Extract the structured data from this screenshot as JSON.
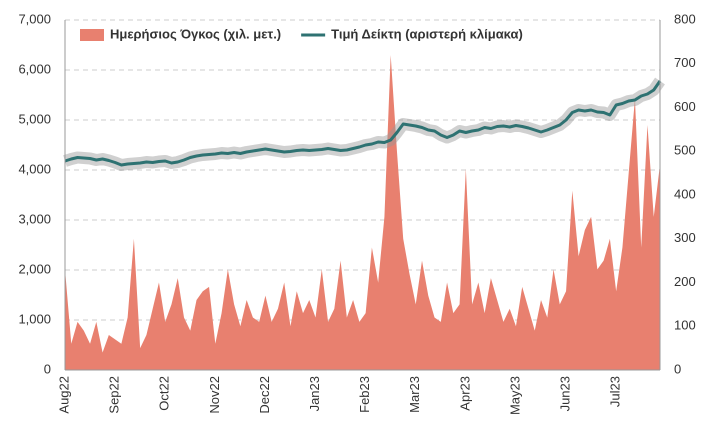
{
  "chart_data": {
    "type": "combo",
    "categories": [
      "Aug22",
      null,
      null,
      null,
      null,
      null,
      null,
      null,
      "Sep22",
      null,
      null,
      null,
      null,
      null,
      null,
      null,
      "Oct22",
      null,
      null,
      null,
      null,
      null,
      null,
      null,
      "Nov22",
      null,
      null,
      null,
      null,
      null,
      null,
      null,
      "Dec22",
      null,
      null,
      null,
      null,
      null,
      null,
      null,
      "Jan23",
      null,
      null,
      null,
      null,
      null,
      null,
      null,
      "Feb23",
      null,
      null,
      null,
      null,
      null,
      null,
      null,
      "Mar23",
      null,
      null,
      null,
      null,
      null,
      null,
      null,
      "Apr23",
      null,
      null,
      null,
      null,
      null,
      null,
      null,
      "May23",
      null,
      null,
      null,
      null,
      null,
      null,
      null,
      "Jun23",
      null,
      null,
      null,
      null,
      null,
      null,
      null,
      "Jul23",
      null,
      null,
      null,
      null,
      null,
      null,
      null
    ],
    "series": [
      {
        "name": "Ημερήσιος Όγκος (χιλ. μετ.)",
        "type": "area",
        "axis": "y2",
        "color": "#e8806f",
        "values": [
          230,
          60,
          110,
          90,
          60,
          110,
          40,
          80,
          70,
          60,
          120,
          300,
          50,
          80,
          140,
          200,
          110,
          150,
          210,
          120,
          90,
          160,
          180,
          190,
          60,
          130,
          230,
          150,
          100,
          160,
          120,
          110,
          170,
          110,
          140,
          200,
          100,
          180,
          130,
          160,
          120,
          230,
          110,
          140,
          250,
          120,
          160,
          110,
          130,
          280,
          200,
          350,
          720,
          500,
          300,
          220,
          150,
          250,
          170,
          120,
          110,
          200,
          130,
          150,
          460,
          150,
          200,
          130,
          210,
          160,
          110,
          140,
          100,
          190,
          140,
          90,
          160,
          120,
          230,
          150,
          180,
          410,
          260,
          320,
          350,
          230,
          250,
          300,
          180,
          280,
          450,
          620,
          280,
          560,
          350,
          470
        ]
      },
      {
        "name": "Τιμή Δείκτη (αριστερή κλίμακα)",
        "type": "line",
        "axis": "y",
        "color": "#2e7272",
        "values": [
          4180,
          4220,
          4250,
          4240,
          4230,
          4200,
          4220,
          4190,
          4150,
          4100,
          4120,
          4130,
          4140,
          4160,
          4150,
          4170,
          4180,
          4140,
          4160,
          4200,
          4250,
          4280,
          4300,
          4310,
          4320,
          4340,
          4330,
          4350,
          4330,
          4360,
          4380,
          4400,
          4420,
          4400,
          4380,
          4360,
          4370,
          4390,
          4400,
          4390,
          4400,
          4410,
          4430,
          4410,
          4390,
          4400,
          4430,
          4460,
          4500,
          4520,
          4560,
          4550,
          4600,
          4750,
          4920,
          4900,
          4880,
          4850,
          4800,
          4780,
          4700,
          4650,
          4700,
          4780,
          4750,
          4780,
          4800,
          4850,
          4830,
          4870,
          4880,
          4860,
          4890,
          4870,
          4840,
          4800,
          4760,
          4800,
          4850,
          4900,
          5000,
          5150,
          5200,
          5180,
          5200,
          5160,
          5150,
          5100,
          5300,
          5330,
          5380,
          5400,
          5480,
          5520,
          5600,
          5780
        ]
      }
    ],
    "ylim": [
      0,
      7000
    ],
    "yticks": [
      0,
      {
        "value": 1000,
        "label": "1,000"
      },
      {
        "value": 2000,
        "label": "2,000"
      },
      {
        "value": 3000,
        "label": "3,000"
      },
      {
        "value": 4000,
        "label": "4,000"
      },
      {
        "value": 5000,
        "label": "5,000"
      },
      {
        "value": 6000,
        "label": "6,000"
      },
      {
        "value": 7000,
        "label": "7,000"
      }
    ],
    "y2lim": [
      0,
      800
    ],
    "y2ticks": [
      0,
      100,
      200,
      300,
      400,
      500,
      600,
      700,
      800
    ],
    "grid": true,
    "legend": "top"
  }
}
